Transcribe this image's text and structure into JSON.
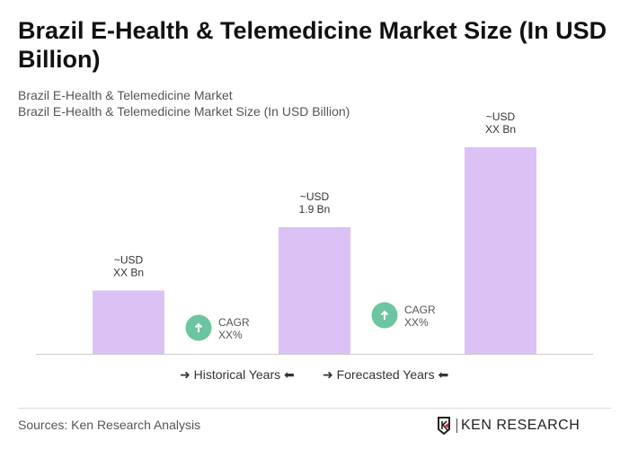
{
  "title": "Brazil E-Health & Telemedicine Market Size (In USD Billion)",
  "subtitle1": "Brazil E-Health & Telemedicine Market",
  "subtitle2": "Brazil E-Health & Telemedicine Market Size (In USD Billion)",
  "chart_data": {
    "type": "bar",
    "categories": [
      "",
      "",
      ""
    ],
    "values": [
      0.95,
      1.9,
      3.1
    ],
    "data_labels": [
      [
        "~USD",
        "XX Bn"
      ],
      [
        "~USD",
        "1.9 Bn"
      ],
      [
        "~USD",
        "XX Bn"
      ]
    ],
    "bar_color": "#dcc1f5",
    "cagr": [
      {
        "label": "CAGR",
        "value": "XX%"
      },
      {
        "label": "CAGR",
        "value": "XX%"
      }
    ],
    "cagr_color": "#6cc5a0",
    "grid": false
  },
  "legend": {
    "historical": "Historical Years",
    "forecasted": "Forecasted Years"
  },
  "source": "Sources: Ken Research Analysis",
  "logo": "KEN RESEARCH"
}
